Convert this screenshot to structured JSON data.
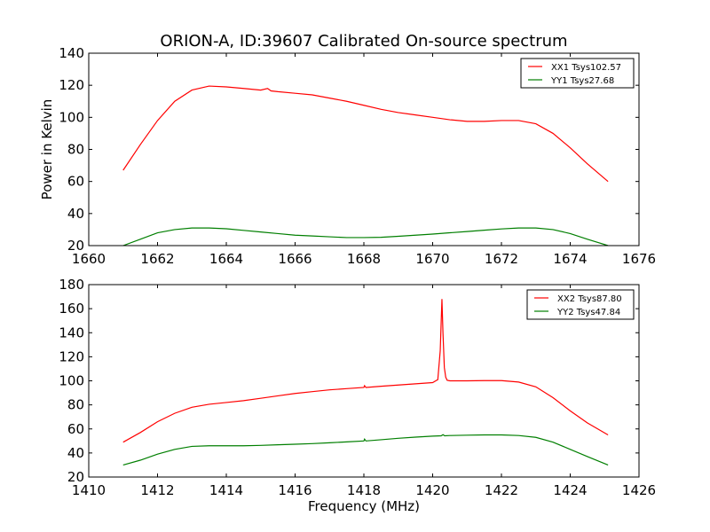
{
  "title": "ORION-A, ID:39607 Calibrated On-source spectrum",
  "colors": {
    "red": "#ff0000",
    "green": "#007f00"
  },
  "chart_data": [
    {
      "type": "line",
      "ylabel": "Power in Kelvin",
      "xlabel": "",
      "xlim": [
        1660,
        1676
      ],
      "ylim": [
        20,
        140
      ],
      "xticks": [
        "1660",
        "1662",
        "1664",
        "1666",
        "1668",
        "1670",
        "1672",
        "1674",
        "1676"
      ],
      "yticks": [
        "20",
        "40",
        "60",
        "80",
        "100",
        "120",
        "140"
      ],
      "legend_position": "top-right",
      "series": [
        {
          "name": "XX1 Tsys102.57",
          "color": "#ff0000",
          "x": [
            1661.0,
            1661.5,
            1662.0,
            1662.5,
            1663.0,
            1663.5,
            1664.0,
            1664.5,
            1665.0,
            1665.2,
            1665.3,
            1665.5,
            1666.0,
            1666.5,
            1667.0,
            1667.5,
            1668.0,
            1668.5,
            1669.0,
            1669.5,
            1670.0,
            1670.5,
            1671.0,
            1671.5,
            1672.0,
            1672.5,
            1673.0,
            1673.5,
            1674.0,
            1674.5,
            1675.1
          ],
          "y": [
            67,
            83,
            98,
            110,
            117,
            119.5,
            119,
            118,
            117,
            118,
            116.5,
            116,
            115,
            114,
            112,
            110,
            107.5,
            105,
            103,
            101.5,
            100,
            98.5,
            97.5,
            97.5,
            98,
            98,
            96,
            90,
            81,
            71,
            60
          ]
        },
        {
          "name": "YY1 Tsys27.68",
          "color": "#007f00",
          "x": [
            1661.0,
            1661.5,
            1662.0,
            1662.5,
            1663.0,
            1663.5,
            1664.0,
            1664.5,
            1665.0,
            1665.5,
            1666.0,
            1666.5,
            1667.0,
            1667.5,
            1668.0,
            1668.5,
            1669.0,
            1669.5,
            1670.0,
            1670.5,
            1671.0,
            1671.5,
            1672.0,
            1672.5,
            1673.0,
            1673.5,
            1674.0,
            1674.5,
            1675.1
          ],
          "y": [
            20,
            24,
            28,
            30,
            31,
            31,
            30.5,
            29.5,
            28.5,
            27.5,
            26.5,
            26,
            25.5,
            25,
            25,
            25.2,
            25.8,
            26.5,
            27.2,
            28,
            28.8,
            29.6,
            30.4,
            31,
            31,
            30,
            27.5,
            24,
            20
          ]
        }
      ]
    },
    {
      "type": "line",
      "ylabel": "",
      "xlabel": "Frequency (MHz)",
      "xlim": [
        1410,
        1426
      ],
      "ylim": [
        20,
        180
      ],
      "xticks": [
        "1410",
        "1412",
        "1414",
        "1416",
        "1418",
        "1420",
        "1422",
        "1424",
        "1426"
      ],
      "yticks": [
        "20",
        "40",
        "60",
        "80",
        "100",
        "120",
        "140",
        "160",
        "180"
      ],
      "legend_position": "top-right",
      "series": [
        {
          "name": "XX2 Tsys87.80",
          "color": "#ff0000",
          "x": [
            1411.0,
            1411.5,
            1412.0,
            1412.5,
            1413.0,
            1413.5,
            1414.0,
            1414.5,
            1415.0,
            1415.5,
            1416.0,
            1416.5,
            1417.0,
            1417.5,
            1418.0,
            1418.02,
            1418.06,
            1418.5,
            1419.0,
            1419.5,
            1420.0,
            1420.15,
            1420.22,
            1420.27,
            1420.3,
            1420.34,
            1420.38,
            1420.42,
            1420.5,
            1421.0,
            1421.5,
            1422.0,
            1422.5,
            1423.0,
            1423.5,
            1424.0,
            1424.5,
            1425.1
          ],
          "y": [
            49,
            57,
            66,
            73,
            78,
            80.5,
            82,
            83.5,
            85.5,
            87.5,
            89.5,
            91,
            92.5,
            93.5,
            94.5,
            96,
            94.5,
            95.5,
            96.5,
            97.5,
            98.5,
            101,
            125,
            168,
            140,
            111,
            103,
            100.5,
            100,
            100,
            100.2,
            100.2,
            99,
            95,
            86,
            75,
            65,
            55
          ]
        },
        {
          "name": "YY2 Tsys47.84",
          "color": "#007f00",
          "x": [
            1411.0,
            1411.5,
            1412.0,
            1412.5,
            1413.0,
            1413.5,
            1414.0,
            1414.5,
            1415.0,
            1415.5,
            1416.0,
            1416.5,
            1417.0,
            1417.5,
            1418.0,
            1418.02,
            1418.06,
            1418.5,
            1419.0,
            1419.5,
            1420.0,
            1420.25,
            1420.3,
            1420.35,
            1420.5,
            1421.0,
            1421.5,
            1422.0,
            1422.5,
            1423.0,
            1423.5,
            1424.0,
            1424.5,
            1425.1
          ],
          "y": [
            30,
            34,
            39,
            43,
            45.5,
            46,
            46,
            46,
            46.3,
            46.8,
            47.3,
            47.8,
            48.5,
            49.2,
            50,
            51.5,
            50,
            51,
            52.2,
            53.2,
            54,
            54.3,
            55.2,
            54.3,
            54.5,
            54.8,
            55,
            55,
            54.5,
            53,
            49,
            43,
            37,
            30
          ]
        }
      ]
    }
  ]
}
